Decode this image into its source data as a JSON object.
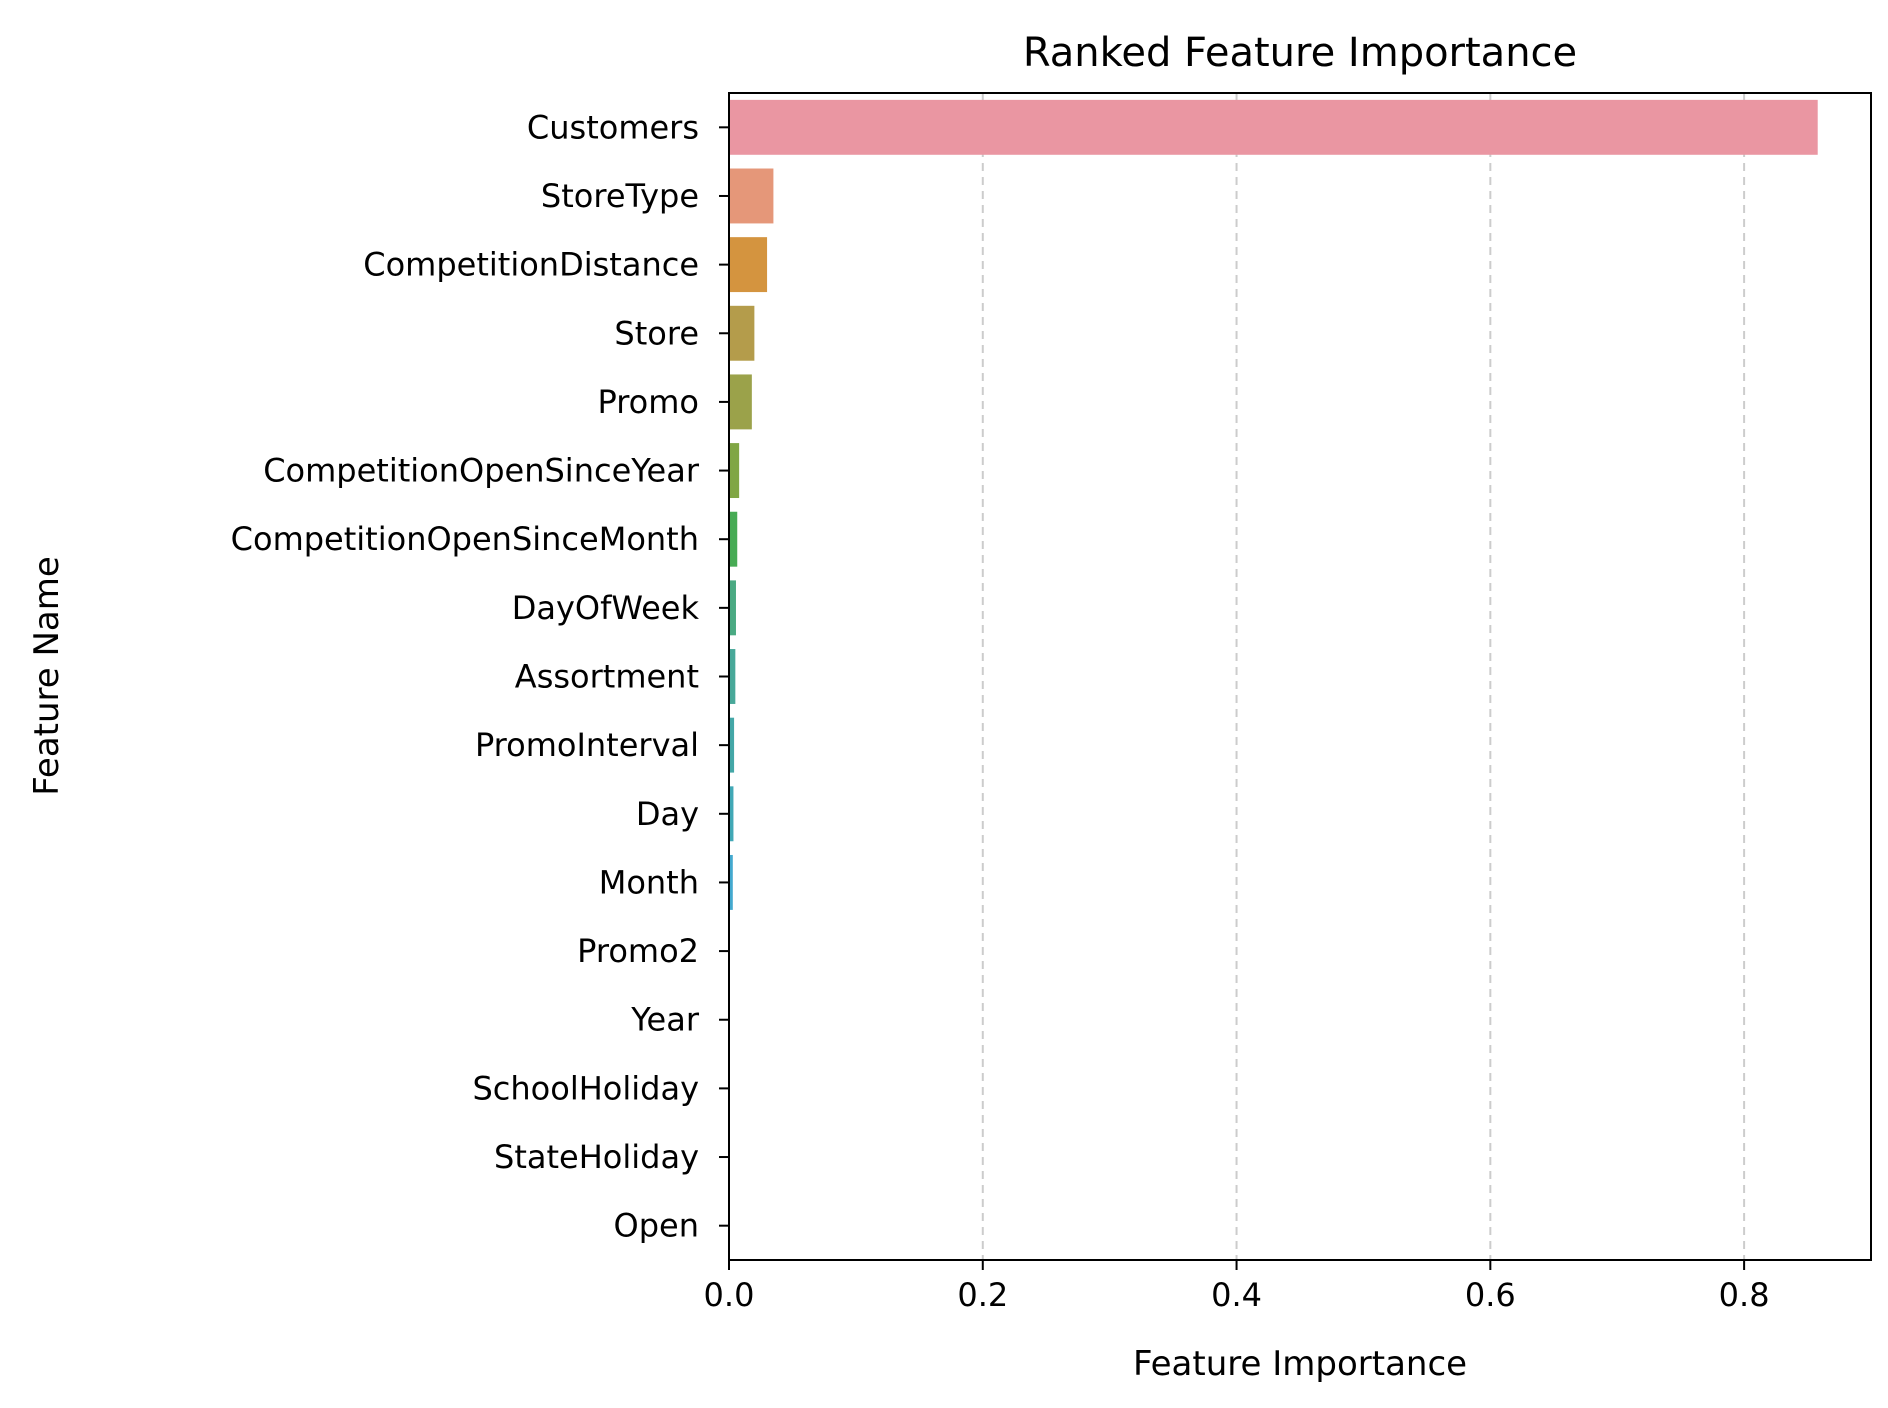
{
  "chart_data": {
    "type": "bar",
    "orientation": "horizontal",
    "title": "Ranked Feature Importance",
    "xlabel": "Feature Importance",
    "ylabel": "Feature Name",
    "xlim": [
      0,
      0.9
    ],
    "xticks": [
      0.0,
      0.2,
      0.4,
      0.6,
      0.8
    ],
    "xtick_labels": [
      "0.0",
      "0.2",
      "0.4",
      "0.6",
      "0.8"
    ],
    "grid": "x-dashed",
    "categories": [
      "Customers",
      "StoreType",
      "CompetitionDistance",
      "Store",
      "Promo",
      "CompetitionOpenSinceYear",
      "CompetitionOpenSinceMonth",
      "DayOfWeek",
      "Assortment",
      "PromoInterval",
      "Day",
      "Month",
      "Promo2",
      "Year",
      "SchoolHoliday",
      "StateHoliday",
      "Open"
    ],
    "values": [
      0.858,
      0.035,
      0.03,
      0.02,
      0.018,
      0.008,
      0.0065,
      0.0055,
      0.005,
      0.004,
      0.0035,
      0.003,
      0.0,
      0.0,
      0.0,
      0.0,
      0.0
    ],
    "colors": [
      "#ea96a2",
      "#e59779",
      "#d4943f",
      "#b49c4b",
      "#9ba24a",
      "#80a644",
      "#47ab54",
      "#4aaa83",
      "#48a899",
      "#44a7a7",
      "#41a8b6",
      "#44a9cf",
      "#7fa7e3",
      "#a69deb",
      "#cc93e8",
      "#e88ad8",
      "#e993be"
    ]
  }
}
